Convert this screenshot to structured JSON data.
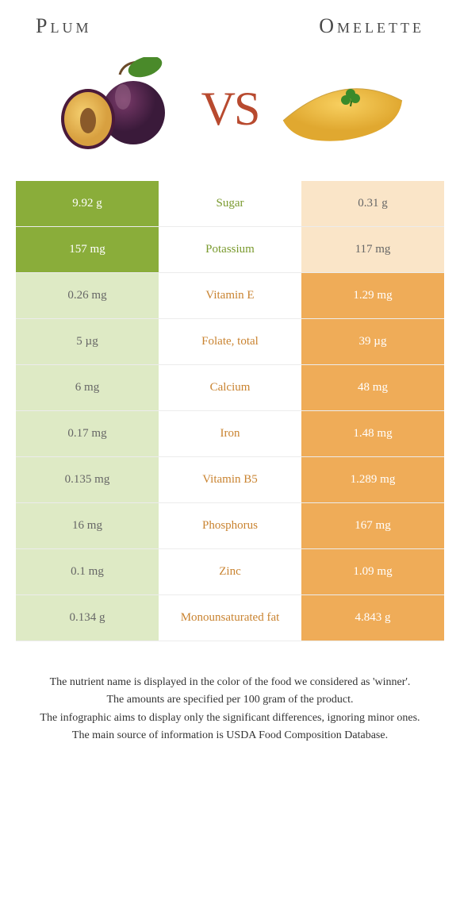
{
  "header": {
    "left_title": "Plum",
    "right_title": "Omelette"
  },
  "vs_label": "VS",
  "colors": {
    "left_strong": "#8aad3a",
    "left_faded": "#deeac5",
    "right_strong": "#efac58",
    "right_faded": "#fae5c8",
    "vs_color": "#b84a2f",
    "mid_green": "#7a9a2e",
    "mid_orange": "#c98330"
  },
  "rows": [
    {
      "nutrient": "Sugar",
      "left": "9.92 g",
      "right": "0.31 g",
      "winner": "left"
    },
    {
      "nutrient": "Potassium",
      "left": "157 mg",
      "right": "117 mg",
      "winner": "left"
    },
    {
      "nutrient": "Vitamin E",
      "left": "0.26 mg",
      "right": "1.29 mg",
      "winner": "right"
    },
    {
      "nutrient": "Folate, total",
      "left": "5 µg",
      "right": "39 µg",
      "winner": "right"
    },
    {
      "nutrient": "Calcium",
      "left": "6 mg",
      "right": "48 mg",
      "winner": "right"
    },
    {
      "nutrient": "Iron",
      "left": "0.17 mg",
      "right": "1.48 mg",
      "winner": "right"
    },
    {
      "nutrient": "Vitamin B5",
      "left": "0.135 mg",
      "right": "1.289 mg",
      "winner": "right"
    },
    {
      "nutrient": "Phosphorus",
      "left": "16 mg",
      "right": "167 mg",
      "winner": "right"
    },
    {
      "nutrient": "Zinc",
      "left": "0.1 mg",
      "right": "1.09 mg",
      "winner": "right"
    },
    {
      "nutrient": "Monounsaturated fat",
      "left": "0.134 g",
      "right": "4.843 g",
      "winner": "right"
    }
  ],
  "footer": {
    "line1": "The nutrient name is displayed in the color of the food we considered as 'winner'.",
    "line2": "The amounts are specified per 100 gram of the product.",
    "line3": "The infographic aims to display only the significant differences, ignoring minor ones.",
    "line4": "The main source of information is USDA Food Composition Database."
  }
}
